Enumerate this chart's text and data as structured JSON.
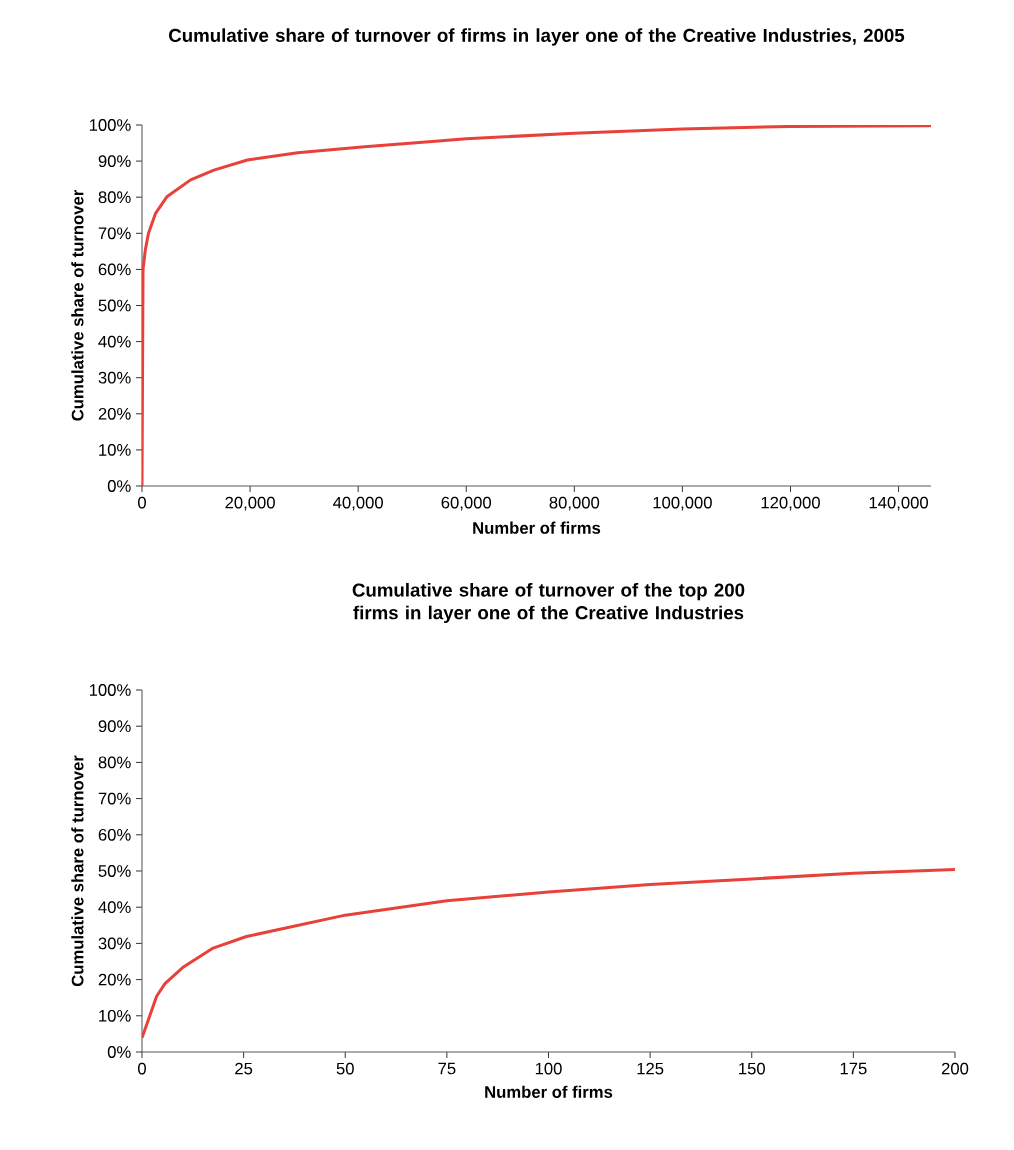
{
  "chart_data": [
    {
      "type": "line",
      "title": "Cumulative share of turnover of firms in layer one of the Creative Industries, 2005",
      "xlabel": "Number of firms",
      "ylabel": "Cumulative share of turnover",
      "xlim": [
        0,
        146000
      ],
      "ylim": [
        0,
        100
      ],
      "xticks": [
        0,
        {
          "value": 20000,
          "label": "20,000"
        },
        {
          "value": 40000,
          "label": "40,000"
        },
        {
          "value": 60000,
          "label": "60,000"
        },
        {
          "value": 80000,
          "label": "80,000"
        },
        {
          "value": 100000,
          "label": "100,000"
        },
        {
          "value": 120000,
          "label": "120,000"
        },
        {
          "value": 140000,
          "label": "140,000"
        }
      ],
      "yticks": [
        {
          "value": 0,
          "label": "0%"
        },
        {
          "value": 10,
          "label": "10%"
        },
        {
          "value": 20,
          "label": "20%"
        },
        {
          "value": 30,
          "label": "30%"
        },
        {
          "value": 40,
          "label": "40%"
        },
        {
          "value": 50,
          "label": "50%"
        },
        {
          "value": 60,
          "label": "60%"
        },
        {
          "value": 70,
          "label": "70%"
        },
        {
          "value": 80,
          "label": "80%"
        },
        {
          "value": 90,
          "label": "90%"
        },
        {
          "value": 100,
          "label": "100%"
        }
      ],
      "series": [
        {
          "color": "#e8413a",
          "x": [
            0,
            190,
            620,
            1200,
            2500,
            4600,
            9000,
            13300,
            19500,
            28800,
            41200,
            53700,
            60000,
            80000,
            100000,
            120000,
            146000
          ],
          "values": [
            0,
            60,
            65.4,
            70,
            75.5,
            80.1,
            84.8,
            87.5,
            90.3,
            92.3,
            94,
            95.4,
            96.2,
            97.7,
            98.9,
            99.6,
            99.8
          ]
        }
      ]
    },
    {
      "type": "line",
      "title": "Cumulative share of turnover of the top 200 firms in layer one of the Creative Industries",
      "xlabel": "Number of firms",
      "ylabel": "Cumulative share of turnover",
      "xlim": [
        0,
        200
      ],
      "ylim": [
        0,
        100
      ],
      "xticks": [
        0,
        25,
        50,
        75,
        100,
        125,
        150,
        175,
        200
      ],
      "yticks": [
        {
          "value": 0,
          "label": "0%"
        },
        {
          "value": 10,
          "label": "10%"
        },
        {
          "value": 20,
          "label": "20%"
        },
        {
          "value": 30,
          "label": "30%"
        },
        {
          "value": 40,
          "label": "40%"
        },
        {
          "value": 50,
          "label": "50%"
        },
        {
          "value": 60,
          "label": "60%"
        },
        {
          "value": 70,
          "label": "70%"
        },
        {
          "value": 80,
          "label": "80%"
        },
        {
          "value": 90,
          "label": "90%"
        },
        {
          "value": 100,
          "label": "100%"
        }
      ],
      "series": [
        {
          "color": "#e8413a",
          "x": [
            0,
            3.6,
            5.65,
            10.2,
            17.5,
            25.7,
            50,
            75,
            100,
            125,
            150,
            175,
            200
          ],
          "values": [
            3.9,
            15.4,
            18.9,
            23.5,
            28.7,
            31.9,
            37.8,
            41.8,
            44.2,
            46.3,
            47.8,
            49.4,
            50.4
          ]
        }
      ]
    }
  ]
}
